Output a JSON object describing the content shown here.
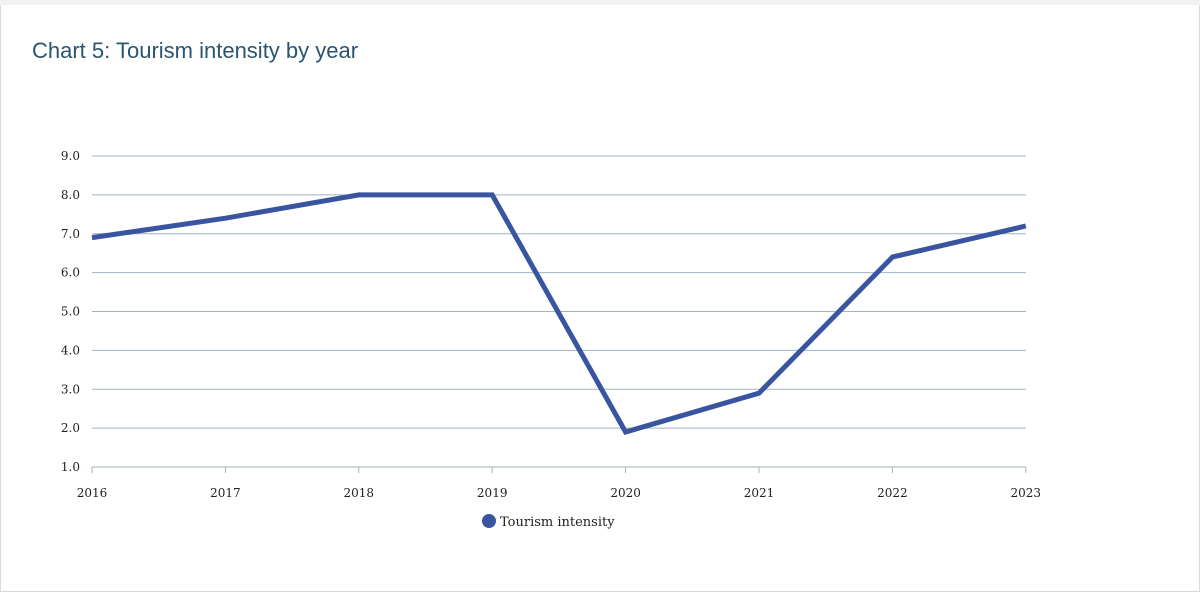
{
  "title": "Chart 5: Tourism intensity by year",
  "colors": {
    "title": "#2a5470",
    "series": "#3a55a0",
    "grid": "#9fb3c4",
    "axis": "#9fb3c4"
  },
  "chart_data": {
    "type": "line",
    "title": "Chart 5: Tourism intensity by year",
    "xlabel": "",
    "ylabel": "",
    "categories": [
      "2016",
      "2017",
      "2018",
      "2019",
      "2020",
      "2021",
      "2022",
      "2023"
    ],
    "yticks": [
      "1.0",
      "2.0",
      "3.0",
      "4.0",
      "5.0",
      "6.0",
      "7.0",
      "8.0",
      "9.0"
    ],
    "ylim": [
      1,
      9
    ],
    "grid": true,
    "legend_position": "bottom",
    "series": [
      {
        "name": "Tourism intensity",
        "values": [
          6.9,
          7.4,
          8.0,
          8.0,
          1.9,
          2.9,
          6.4,
          7.2
        ]
      }
    ]
  }
}
